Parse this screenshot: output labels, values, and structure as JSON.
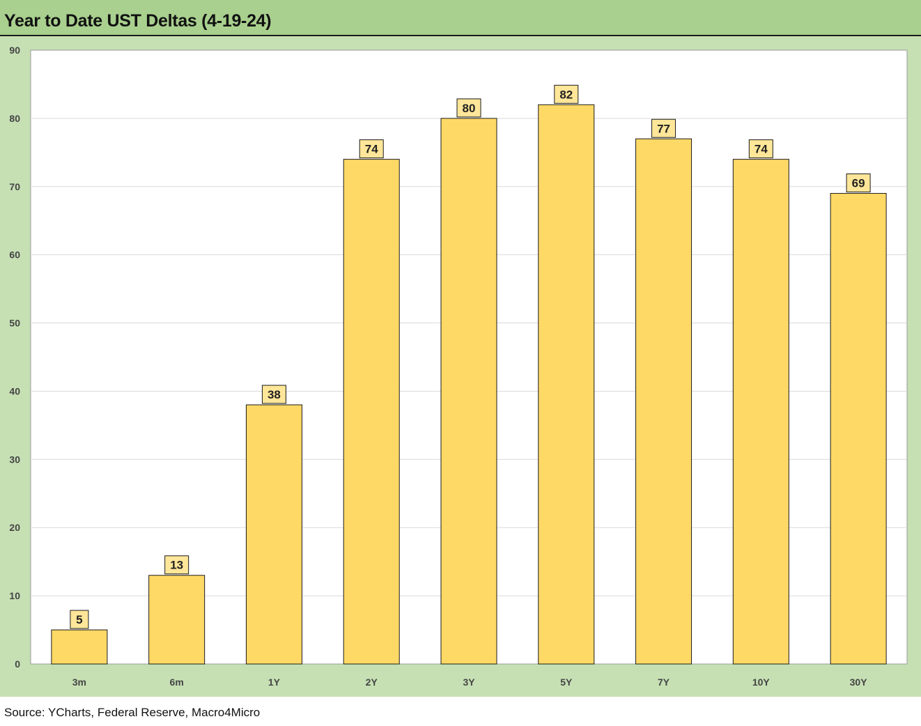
{
  "chart_data": {
    "type": "bar",
    "title": "Year to Date UST Deltas (4-19-24)",
    "categories": [
      "3m",
      "6m",
      "1Y",
      "2Y",
      "3Y",
      "5Y",
      "7Y",
      "10Y",
      "30Y"
    ],
    "values": [
      5,
      13,
      38,
      74,
      80,
      82,
      77,
      74,
      69
    ],
    "ylim": [
      0,
      90
    ],
    "yticks": [
      0,
      10,
      20,
      30,
      40,
      50,
      60,
      70,
      80,
      90
    ],
    "xlabel": "",
    "ylabel": "",
    "grid": true,
    "legend": "none",
    "colors": {
      "bar": "#ffd966",
      "bar_outline": "#1a1a1a",
      "label_box": "#ffe699",
      "title_band": "#a9d08e",
      "chart_background": "#c6e0b4",
      "plot_background": "#ffffff",
      "gridline": "#d9d9d9"
    }
  },
  "source": "Source: YCharts, Federal Reserve, Macro4Micro"
}
